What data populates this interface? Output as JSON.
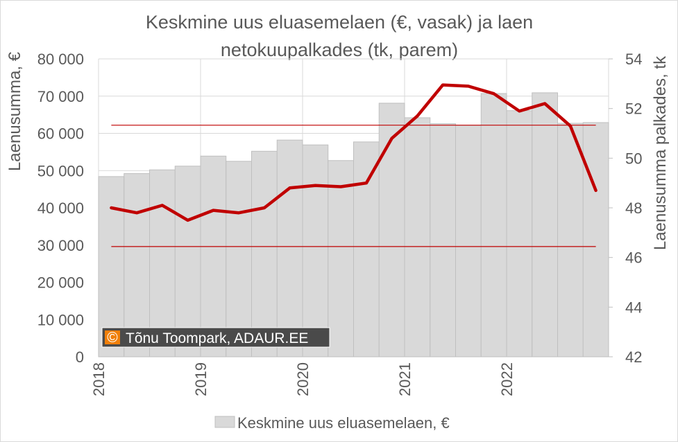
{
  "chart_data": {
    "type": "bar+line",
    "title_lines": [
      "Keskmine uus eluasemelaen (€, vasak) ja laen",
      "netokuupalkades (tk, parem)"
    ],
    "ylabel": "Laenusumma, €",
    "y2label": "Laenusumma palkades, tk",
    "ylim": [
      0,
      80000
    ],
    "y2lim": [
      42,
      54
    ],
    "y_ticks": [
      "0",
      "10 000",
      "20 000",
      "30 000",
      "40 000",
      "50 000",
      "60 000",
      "70 000",
      "80 000"
    ],
    "y2_ticks": [
      "42",
      "44",
      "46",
      "48",
      "50",
      "52",
      "54"
    ],
    "x_year_labels": [
      "2018",
      "2019",
      "2020",
      "2021",
      "2022"
    ],
    "periods": [
      "2018 Q1",
      "2018 Q2",
      "2018 Q3",
      "2018 Q4",
      "2019 Q1",
      "2019 Q2",
      "2019 Q3",
      "2019 Q4",
      "2020 Q1",
      "2020 Q2",
      "2020 Q3",
      "2020 Q4",
      "2021 Q1",
      "2021 Q2",
      "2021 Q3",
      "2021 Q4",
      "2022 Q1",
      "2022 Q2",
      "2022 Q3",
      "2022 Q4"
    ],
    "series": [
      {
        "name": "Keskmine uus eluasemelaen, €",
        "kind": "bar",
        "axis": "left",
        "color": "#d9d9d9",
        "values": [
          48400,
          49200,
          50200,
          51200,
          53900,
          52500,
          55200,
          58200,
          56900,
          52700,
          57700,
          68100,
          64200,
          62600,
          62200,
          70700,
          66100,
          70900,
          62700,
          62900
        ]
      },
      {
        "kind": "line",
        "axis": "right",
        "color": "#c00000",
        "values": [
          48.0,
          47.8,
          48.1,
          47.5,
          47.9,
          47.8,
          48.0,
          48.8,
          48.9,
          48.85,
          49.0,
          50.8,
          51.7,
          52.95,
          52.9,
          52.6,
          51.9,
          52.2,
          51.3,
          48.7
        ]
      }
    ],
    "reference_lines": [
      {
        "axis": "left",
        "value": 62200,
        "color": "#c00000"
      },
      {
        "axis": "left",
        "value": 29600,
        "color": "#c00000"
      }
    ],
    "grid": true,
    "legend_position": "bottom"
  },
  "credit": {
    "symbol": "©",
    "text": "Tõnu Toompark, ADAUR.EE",
    "accent_color": "#f07f09"
  }
}
